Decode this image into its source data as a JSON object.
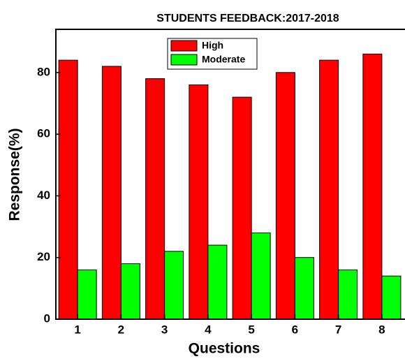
{
  "chart_data": {
    "type": "bar",
    "title": "STUDENTS FEEDBACK:2017-2018",
    "x_label": "Questions",
    "y_label": "Response(%)",
    "categories": [
      "1",
      "2",
      "3",
      "4",
      "5",
      "6",
      "7",
      "8"
    ],
    "series": [
      {
        "name": "High",
        "color": "#ff0000",
        "values": [
          84,
          82,
          78,
          76,
          72,
          80,
          84,
          86
        ]
      },
      {
        "name": "Moderate",
        "color": "#00ff00",
        "values": [
          16,
          18,
          22,
          24,
          28,
          20,
          16,
          14
        ]
      }
    ],
    "ylim": [
      0,
      94
    ],
    "yticks": [
      0,
      20,
      40,
      60,
      80
    ],
    "grid": false,
    "legend": "top"
  }
}
